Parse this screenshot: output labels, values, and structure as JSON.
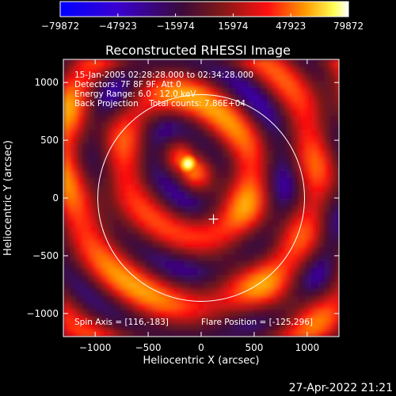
{
  "chart_data": {
    "type": "heatmap",
    "title": "Reconstructed RHESSI Image",
    "xlabel": "Heliocentric X (arcsec)",
    "ylabel": "Heliocentric Y (arcsec)",
    "xlim": [
      -1300,
      1300
    ],
    "ylim": [
      -1200,
      1200
    ],
    "x_ticks": [
      -1000,
      -500,
      0,
      500,
      1000
    ],
    "y_ticks": [
      1000,
      500,
      0,
      -500,
      -1000
    ],
    "colorbar": {
      "min": -79872,
      "max": 79872,
      "tick_values": [
        -79872,
        -47923,
        -15974,
        15974,
        47923,
        79872
      ],
      "tick_labels": [
        "−79872",
        "−47923",
        "−15974",
        "15974",
        "47923",
        "79872"
      ],
      "colors": [
        "#0000ff",
        "#3a00d0",
        "#3b0a3b",
        "#7a1818",
        "#ff1010",
        "#ff9a00",
        "#ffff55",
        "#ffffff"
      ]
    },
    "info_lines": [
      "15-Jan-2005 02:28:28.000 to 02:34:28.000",
      "Detectors: 7F 8F 9F, Att 0",
      "Energy Range: 6.0 - 12.0 keV",
      "Back Projection    Total counts: 7.86E+04"
    ],
    "spin_axis_text": "Spin Axis = [116,-183]",
    "flare_position_text": "Flare Position = [-125,296]",
    "spin_axis": [
      116,
      -183
    ],
    "flare_position": [
      -125,
      296
    ],
    "solar_limb_radius": 975,
    "date_stamp": "27-Apr-2022 21:21"
  }
}
